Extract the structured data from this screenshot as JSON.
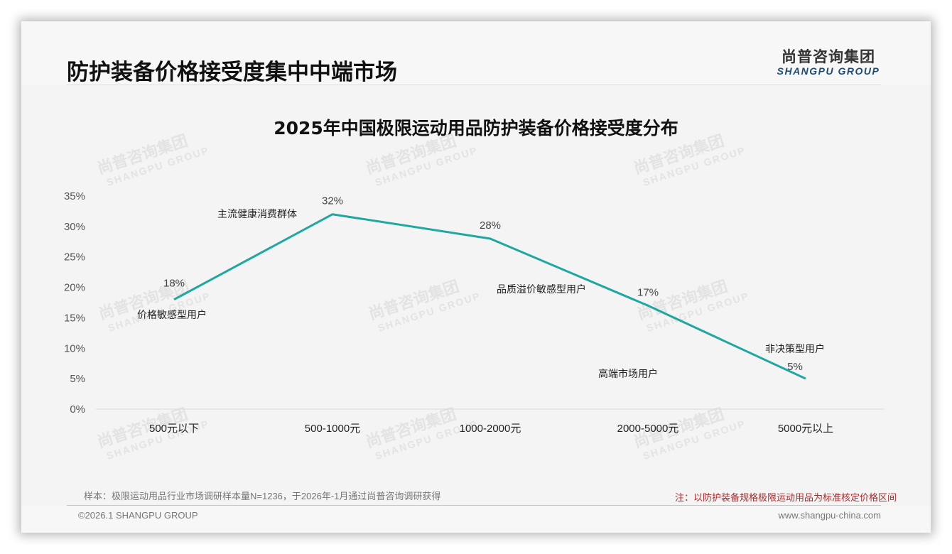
{
  "header": {
    "page_title": "防护装备价格接受度集中中端市场",
    "logo_cn": "尚普咨询集团",
    "logo_en": "SHANGPU GROUP"
  },
  "watermark": {
    "cn": "尚普咨询集团",
    "en": "SHANGPU GROUP"
  },
  "chart_data": {
    "type": "line",
    "title": "2025年中国极限运动用品防护装备价格接受度分布",
    "xlabel": "",
    "ylabel": "",
    "categories": [
      "500元以下",
      "500-1000元",
      "1000-2000元",
      "2000-5000元",
      "5000元以上"
    ],
    "series": [
      {
        "name": "价格接受度",
        "values": [
          18,
          32,
          28,
          17,
          5
        ],
        "color": "#1fa7a0"
      }
    ],
    "value_labels": [
      "18%",
      "32%",
      "28%",
      "17%",
      "5%"
    ],
    "segment_labels": [
      "价格敏感型用户",
      "主流健康消费群体",
      "品质溢价敏感型用户",
      "高端市场用户",
      "非决策型用户"
    ],
    "yticks": [
      "0%",
      "5%",
      "10%",
      "15%",
      "20%",
      "25%",
      "30%",
      "35%"
    ],
    "ylim": [
      0,
      35
    ],
    "grid": false,
    "legend": "none"
  },
  "footer": {
    "sample": "样本：极限运动用品行业市场调研样本量N=1236，于2026年-1月通过尚普咨询调研获得",
    "note": "注：以防护装备规格极限运动用品为标准核定价格区间",
    "copyright": "©2026.1 SHANGPU GROUP",
    "website": "www.shangpu-china.com"
  }
}
